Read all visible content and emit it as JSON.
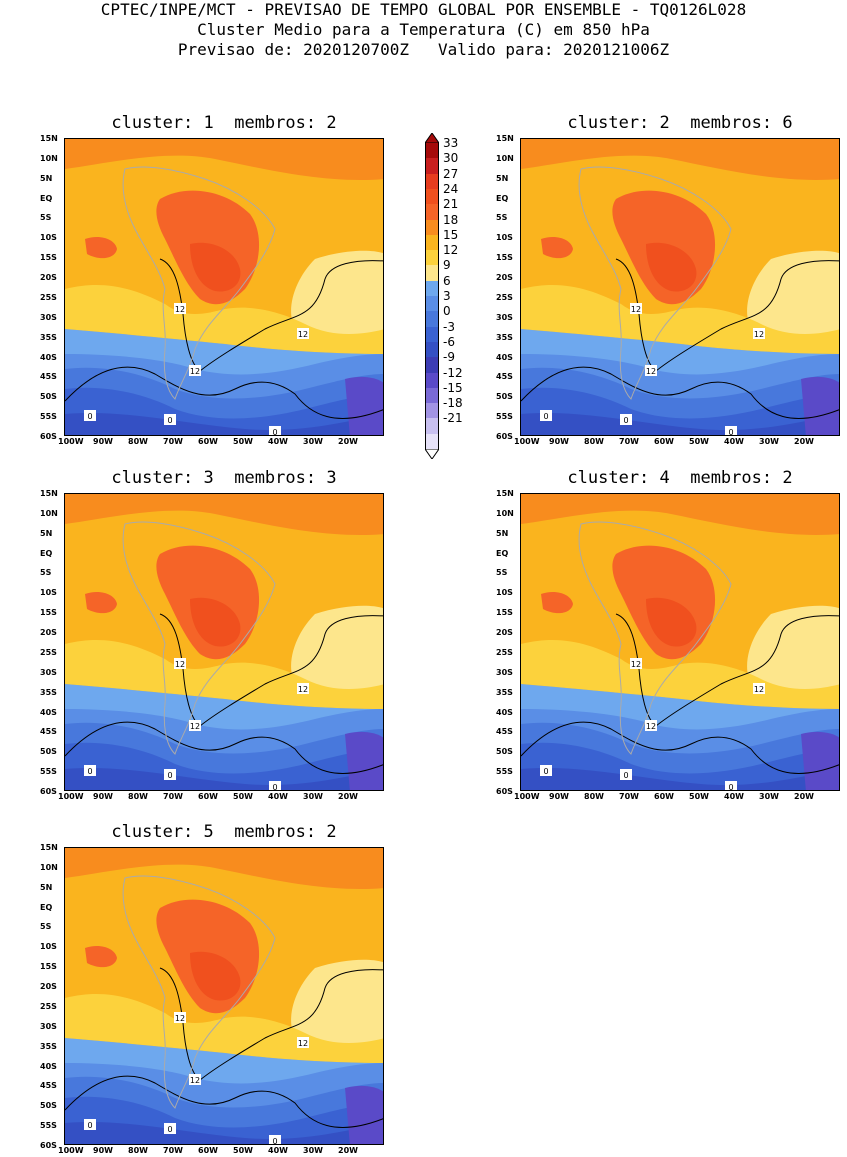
{
  "header": {
    "line1": "CPTEC/INPE/MCT - PREVISAO DE TEMPO GLOBAL POR ENSEMBLE - TQ0126L028",
    "line2": "Cluster Medio para a Temperatura (C) em 850 hPa",
    "line3": "Previsao de: 2020120700Z   Valido para: 2020121006Z"
  },
  "panels": [
    {
      "title": "cluster: 1  membros: 2"
    },
    {
      "title": "cluster: 2  membros: 6"
    },
    {
      "title": "cluster: 3  membros: 3"
    },
    {
      "title": "cluster: 4  membros: 2"
    },
    {
      "title": "cluster: 5  membros: 2"
    }
  ],
  "lat_ticks": [
    "15N",
    "10N",
    "5N",
    "EQ",
    "5S",
    "10S",
    "15S",
    "20S",
    "25S",
    "30S",
    "35S",
    "40S",
    "45S",
    "50S",
    "55S",
    "60S"
  ],
  "lon_ticks": [
    "100W",
    "90W",
    "80W",
    "70W",
    "60W",
    "50W",
    "40W",
    "30W",
    "20W"
  ],
  "contour_labels": [
    "12",
    "12",
    "12",
    "0",
    "0",
    "0"
  ],
  "colorbar": {
    "labels": [
      "33",
      "30",
      "27",
      "24",
      "21",
      "18",
      "15",
      "12",
      "9",
      "6",
      "3",
      "0",
      "-3",
      "-6",
      "-9",
      "-12",
      "-15",
      "-18",
      "-21"
    ],
    "colors": [
      "#a50a0a",
      "#c81e1e",
      "#e63c1e",
      "#f0501e",
      "#f56428",
      "#f88c1e",
      "#fab41e",
      "#fcd23c",
      "#fde68c",
      "#6ea8ee",
      "#5a8ee6",
      "#4878dc",
      "#3a62d2",
      "#3450c4",
      "#3c3cb4",
      "#5a4ac8",
      "#7a6ad6",
      "#a294e4",
      "#c8c0f0",
      "#e6e2f8"
    ]
  },
  "map_colors": {
    "warm_orange": "#fab41e",
    "orange_dark": "#f88c1e",
    "red_orange": "#f56428",
    "red": "#f0501e",
    "deep_red": "#e63c1e",
    "yellow": "#fcd23c",
    "pale_yellow": "#fde68c",
    "light_blue": "#6ea8ee",
    "blue": "#5a8ee6",
    "mid_blue": "#4878dc",
    "dark_blue": "#3a62d2",
    "navy": "#3450c4",
    "violet": "#5a4ac8"
  }
}
